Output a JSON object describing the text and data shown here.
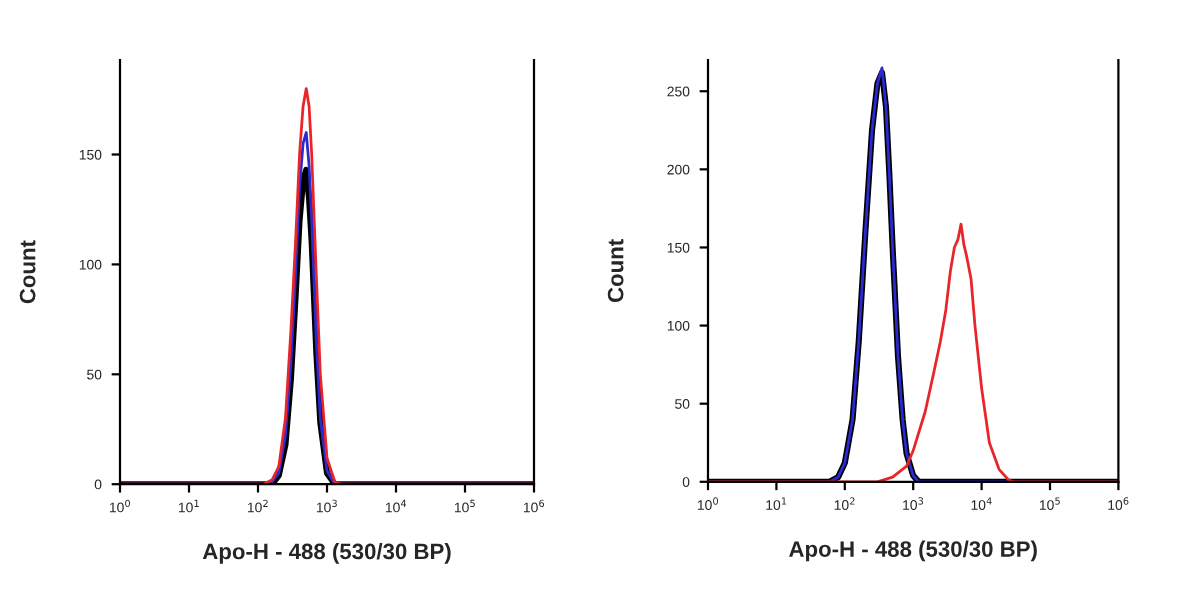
{
  "chart_data": [
    {
      "type": "line",
      "xlabel": "Apo-H - 488 (530/30 BP)",
      "ylabel": "Count",
      "log": "x",
      "grid": false,
      "marker": "none",
      "line_style": "solid",
      "xlim": [
        1,
        1000000
      ],
      "xticks": [
        {
          "value": 1,
          "label": "10$^{0}$"
        },
        {
          "value": 10,
          "label": "10$^{1}$"
        },
        {
          "value": 100,
          "label": "10$^{2}$"
        },
        {
          "value": 1000,
          "label": "10$^{3}$"
        },
        {
          "value": 10000,
          "label": "10$^{4}$"
        },
        {
          "value": 100000,
          "label": "10$^{5}$"
        },
        {
          "value": 1000000,
          "label": "10$^{6}$"
        }
      ],
      "ylim": [
        0,
        193
      ],
      "yticks": [
        0,
        50,
        100,
        150
      ],
      "series": [
        {
          "color": "#000000",
          "x": [
            1,
            160,
            200,
            250,
            300,
            350,
            400,
            450,
            500,
            550,
            600,
            700,
            800,
            1000,
            1300,
            1000000
          ],
          "values": [
            0,
            0,
            4,
            18,
            48,
            85,
            120,
            138,
            143,
            130,
            110,
            60,
            28,
            5,
            0,
            0
          ]
        },
        {
          "color": "#2a2ad0",
          "x": [
            1,
            150,
            200,
            250,
            300,
            350,
            400,
            450,
            500,
            550,
            600,
            700,
            800,
            1000,
            1300,
            1000000
          ],
          "values": [
            0,
            0,
            5,
            22,
            55,
            95,
            135,
            155,
            160,
            145,
            120,
            65,
            30,
            6,
            0,
            0
          ]
        },
        {
          "color": "#e8262a",
          "x": [
            1,
            120,
            160,
            200,
            250,
            300,
            350,
            400,
            450,
            500,
            550,
            600,
            700,
            800,
            1000,
            1300,
            1600,
            1000000
          ],
          "values": [
            0,
            0,
            2,
            8,
            30,
            70,
            110,
            150,
            172,
            180,
            172,
            150,
            95,
            50,
            12,
            1,
            0,
            0
          ]
        }
      ]
    },
    {
      "type": "line",
      "xlabel": "Apo-H - 488 (530/30 BP)",
      "ylabel": "Count",
      "log": "x",
      "grid": false,
      "marker": "none",
      "line_style": "solid",
      "xlim": [
        1,
        1000000
      ],
      "xticks": [
        {
          "value": 1,
          "label": "10$^{0}$"
        },
        {
          "value": 10,
          "label": "10$^{1}$"
        },
        {
          "value": 100,
          "label": "10$^{2}$"
        },
        {
          "value": 1000,
          "label": "10$^{3}$"
        },
        {
          "value": 10000,
          "label": "10$^{4}$"
        },
        {
          "value": 100000,
          "label": "10$^{5}$"
        },
        {
          "value": 1000000,
          "label": "10$^{6}$"
        }
      ],
      "ylim": [
        0,
        270
      ],
      "yticks": [
        0,
        50,
        100,
        150,
        200,
        250
      ],
      "series": [
        {
          "color": "#000000",
          "x": [
            1,
            60,
            80,
            100,
            130,
            160,
            200,
            250,
            300,
            350,
            400,
            450,
            500,
            600,
            700,
            800,
            1000,
            1200,
            1000000
          ],
          "values": [
            0,
            0,
            3,
            12,
            40,
            90,
            160,
            225,
            255,
            262,
            240,
            195,
            150,
            80,
            40,
            18,
            4,
            0,
            0
          ]
        },
        {
          "color": "#2a2ad0",
          "x": [
            1,
            60,
            80,
            100,
            130,
            160,
            200,
            250,
            300,
            350,
            400,
            450,
            500,
            600,
            700,
            800,
            1000,
            1200,
            1000000
          ],
          "values": [
            0,
            0,
            3,
            12,
            40,
            90,
            160,
            225,
            255,
            265,
            240,
            195,
            150,
            80,
            40,
            18,
            4,
            0,
            0
          ]
        },
        {
          "color": "#e8262a",
          "x": [
            1,
            300,
            500,
            800,
            1000,
            1500,
            2000,
            2500,
            3000,
            3500,
            4000,
            4500,
            5000,
            5500,
            6000,
            7000,
            8000,
            10000,
            13000,
            18000,
            25000,
            30000,
            1000000
          ],
          "values": [
            0,
            0,
            3,
            10,
            20,
            45,
            70,
            90,
            110,
            135,
            150,
            155,
            165,
            152,
            145,
            130,
            100,
            60,
            25,
            8,
            1,
            0,
            0
          ]
        }
      ]
    }
  ]
}
